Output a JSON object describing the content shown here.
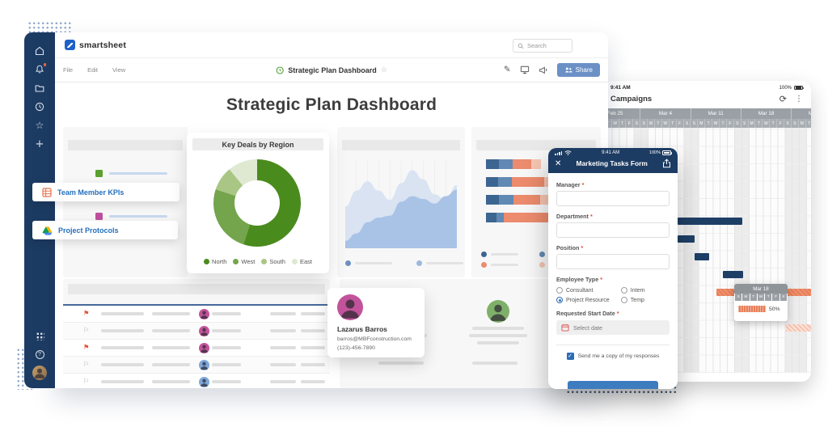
{
  "app": {
    "logo_text": "smartsheet",
    "search_placeholder": "Search",
    "menu_items": [
      "File",
      "Edit",
      "View"
    ],
    "toolbar": {
      "sheet_title": "Strategic Plan Dashboard",
      "share_label": "Share"
    },
    "page_title": "Strategic Plan Dashboard"
  },
  "floating_labels": {
    "kpi": "Team Member KPIs",
    "protocols": "Project Protocols"
  },
  "left_panel": {
    "items": [
      {
        "color": "#5ba02e"
      },
      {
        "color": "#3b78c9"
      },
      {
        "color": "#bf4f9c"
      },
      {
        "color": "#8d8d8d"
      }
    ]
  },
  "summary_table": {
    "rows": [
      {
        "flag": "red",
        "avatar": "#c2539b"
      },
      {
        "flag": "outline",
        "avatar": "#c2539b"
      },
      {
        "flag": "red",
        "avatar": "#c2539b"
      },
      {
        "flag": "outline",
        "avatar": "#7da7d9"
      },
      {
        "flag": "outline",
        "avatar": "#7da7d9"
      }
    ]
  },
  "contacts_panel": {
    "placeholders": [
      {
        "avatar": "#7da7d9"
      },
      {
        "avatar": "#7fb069"
      }
    ]
  },
  "contact_card": {
    "name": "Lazarus Barros",
    "email": "barros@MBFconstruction.com",
    "phone": "(123)-456-7890",
    "avatar_color": "#c2539b"
  },
  "phone_form": {
    "status_time": "9:41 AM",
    "battery_label": "100%",
    "title": "Marketing Tasks Form",
    "text_fields": [
      {
        "label": "Manager"
      },
      {
        "label": "Department"
      },
      {
        "label": "Position"
      }
    ],
    "employee_type": {
      "label": "Employee Type",
      "options": [
        {
          "label": "Consultant",
          "selected": false
        },
        {
          "label": "Intern",
          "selected": false
        },
        {
          "label": "Project Resource",
          "selected": true
        },
        {
          "label": "Temp",
          "selected": false
        }
      ]
    },
    "date_field": {
      "label": "Requested Start Date",
      "placeholder": "Select date"
    },
    "copy_checkbox": {
      "label": "Send me a copy of my responses",
      "checked": true
    }
  },
  "tablet": {
    "status_time": "9:41 AM",
    "battery_label": "100%",
    "title": "Campaigns"
  },
  "chart_data": [
    {
      "type": "pie",
      "donut": true,
      "title": "Key Deals by Region",
      "labels": [
        "North",
        "West",
        "South",
        "East"
      ],
      "values": [
        55,
        25,
        9,
        11
      ],
      "colors": [
        "#4a8b1e",
        "#74a44c",
        "#a9c685",
        "#dfe9d2"
      ],
      "legend_position": "bottom"
    },
    {
      "type": "area",
      "x": [
        0,
        1,
        2,
        3,
        4,
        5,
        6,
        7,
        8,
        9,
        10
      ],
      "series": [
        {
          "name": "background-series",
          "color": "#d9e3f2",
          "values": [
            45,
            62,
            72,
            62,
            52,
            70,
            84,
            74,
            58,
            52,
            68
          ]
        },
        {
          "name": "foreground-series",
          "color": "#a9c3e6",
          "values": [
            8,
            16,
            28,
            33,
            35,
            50,
            56,
            53,
            48,
            56,
            63
          ]
        }
      ],
      "grid": "vertical-faint",
      "legend": "placeholder-dots",
      "legend_colors": [
        "#6d8fc0",
        "#9db8de"
      ]
    },
    {
      "type": "bar",
      "orientation": "horizontal",
      "stacked": true,
      "colors": [
        "#3d6591",
        "#6189b4",
        "#ec8b6d",
        "#f6c5b2"
      ],
      "rows": [
        [
          16,
          17,
          23,
          12
        ],
        [
          15,
          17,
          40,
          34
        ],
        [
          16,
          18,
          33,
          13
        ],
        [
          13,
          9,
          57,
          13
        ]
      ],
      "legend": "placeholder-dots"
    },
    {
      "type": "gantt",
      "title": "Campaigns",
      "weeks": [
        "Feb 25",
        "Mar 4",
        "Mar 11",
        "Mar 18",
        "Mar 25"
      ],
      "day_letters": [
        "S",
        "M",
        "T",
        "W",
        "T",
        "F",
        "S"
      ],
      "bars": [
        {
          "row": 0,
          "start": 12.1,
          "span": 9.0,
          "kind": "navy"
        },
        {
          "row": 1,
          "start": 12.1,
          "span": 2.4,
          "kind": "navy"
        },
        {
          "row": 2,
          "start": 14.5,
          "span": 2.0,
          "kind": "navy"
        },
        {
          "row": 3,
          "start": 18.4,
          "span": 2.8,
          "kind": "navy"
        },
        {
          "row": 4,
          "start": 17.5,
          "span": 13.2,
          "kind": "orange"
        },
        {
          "row": 6,
          "start": 27.2,
          "span": 3.5,
          "kind": "orange-light"
        }
      ],
      "tooltip": {
        "week": "Mar 18",
        "progress": "50%"
      }
    }
  ]
}
